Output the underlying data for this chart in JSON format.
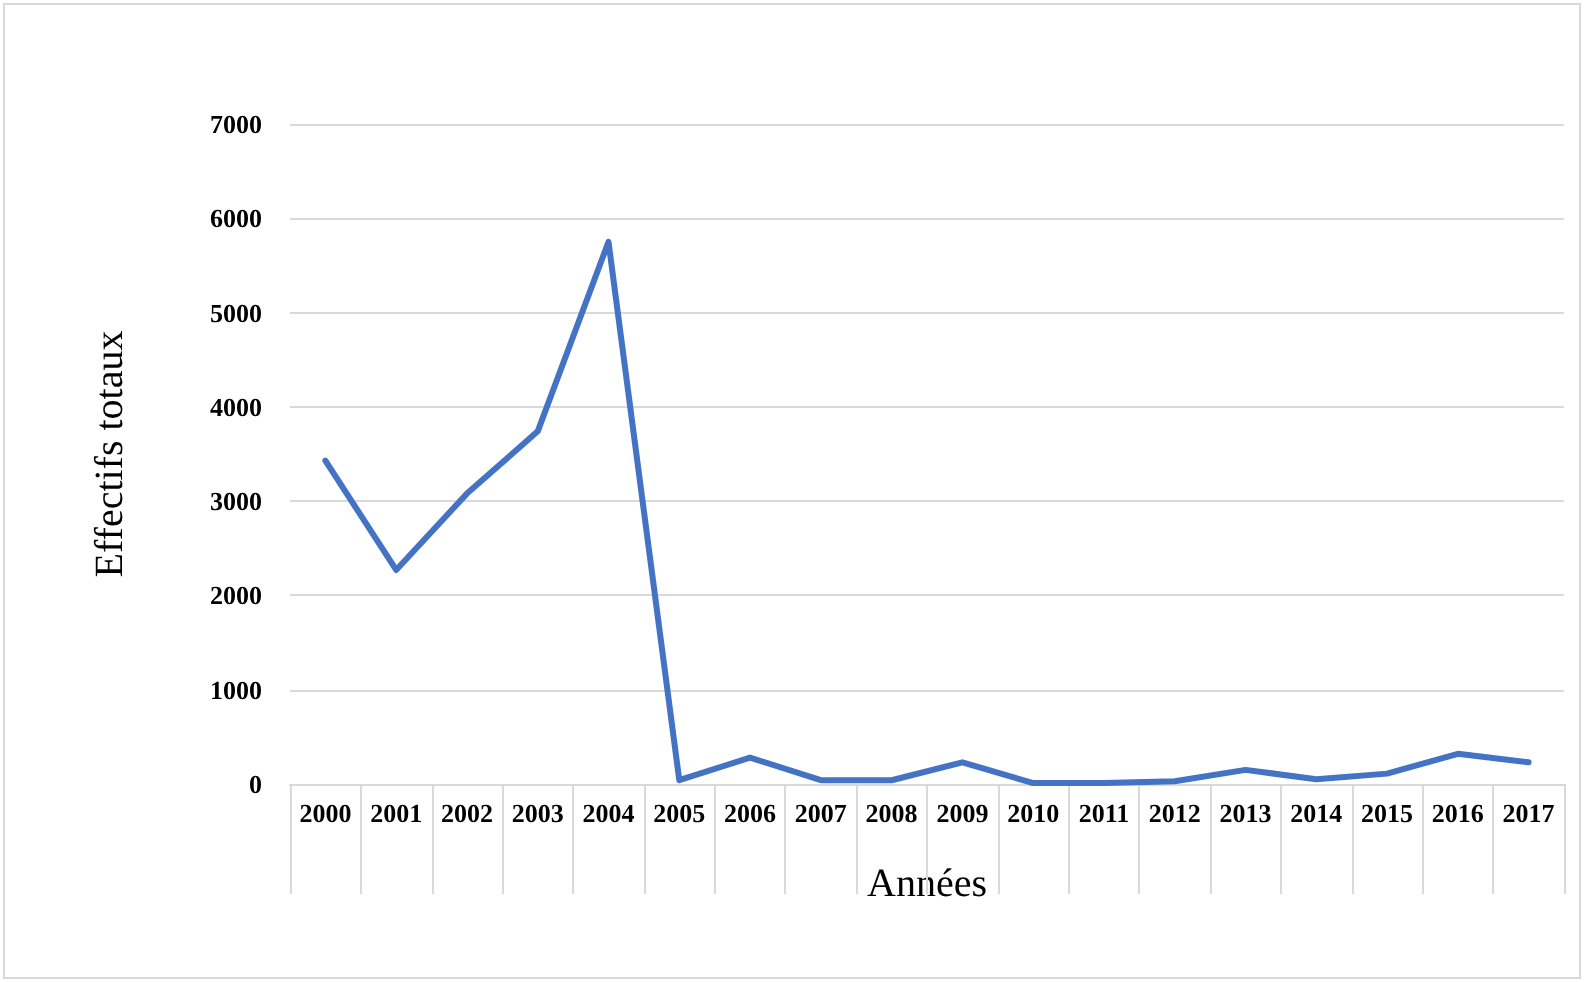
{
  "chart_data": {
    "type": "line",
    "xlabel": "Années",
    "ylabel": "Effectifs totaux",
    "categories": [
      "2000",
      "2001",
      "2002",
      "2003",
      "2004",
      "2005",
      "2006",
      "2007",
      "2008",
      "2009",
      "2010",
      "2011",
      "2012",
      "2013",
      "2014",
      "2015",
      "2016",
      "2017"
    ],
    "series": [
      {
        "color": "#4472c4",
        "values": [
          3430,
          2270,
          3080,
          3740,
          5750,
          40,
          280,
          40,
          40,
          230,
          10,
          10,
          30,
          150,
          50,
          110,
          320,
          230
        ]
      }
    ],
    "ylim": [
      0,
      7000
    ],
    "yticks": [
      0,
      1000,
      2000,
      3000,
      4000,
      5000,
      6000,
      7000
    ],
    "grid": "y",
    "marker": "none",
    "line_style": "solid"
  }
}
